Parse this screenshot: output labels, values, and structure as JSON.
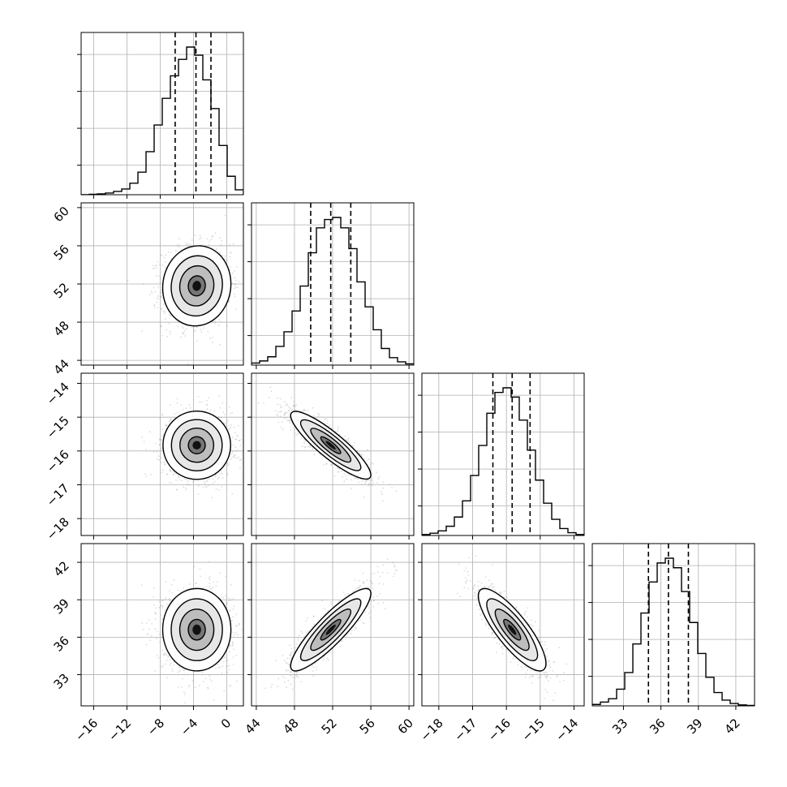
{
  "chart_data": {
    "type": "corner",
    "grid": true,
    "params": [
      {
        "key": "p0",
        "range": [
          -17.5,
          2.0
        ],
        "mean": -3.6,
        "sigma": 2.05,
        "ticks": [
          -16,
          -12,
          -8,
          -4,
          0
        ],
        "tick_labels": [
          "−16",
          "−12",
          "−8",
          "−4",
          "0"
        ]
      },
      {
        "key": "p1",
        "range": [
          43.5,
          60.5
        ],
        "mean": 51.8,
        "sigma": 2.1,
        "ticks": [
          44,
          48,
          52,
          56,
          60
        ],
        "tick_labels": [
          "44",
          "48",
          "52",
          "56",
          "60"
        ]
      },
      {
        "key": "p2",
        "range": [
          -18.5,
          -13.7
        ],
        "mean": -15.83,
        "sigma": 0.5,
        "ticks": [
          -18,
          -17,
          -16,
          -15,
          -14
        ],
        "tick_labels": [
          "−18",
          "−17",
          "−16",
          "−15",
          "−14"
        ]
      },
      {
        "key": "p3",
        "range": [
          30.5,
          43.5
        ],
        "mean": 36.6,
        "sigma": 1.65,
        "ticks": [
          33,
          36,
          39,
          42
        ],
        "tick_labels": [
          "33",
          "36",
          "39",
          "42"
        ]
      }
    ],
    "quantile_lines": [
      [
        -6.2,
        -3.7,
        -1.9
      ],
      [
        49.7,
        51.8,
        53.9
      ],
      [
        -16.4,
        -15.83,
        -15.3
      ],
      [
        35.0,
        36.6,
        38.2
      ]
    ],
    "histograms": [
      {
        "edges": [
          -17.5,
          -16.525,
          -15.55,
          -14.575,
          -13.6,
          -12.625,
          -11.65,
          -10.675,
          -9.7,
          -8.725,
          -7.75,
          -6.775,
          -5.8,
          -4.825,
          -3.85,
          -2.875,
          -1.9,
          -0.925,
          0.05,
          1.025,
          2.0
        ],
        "counts": [
          0,
          1,
          2,
          4,
          8,
          14,
          28,
          55,
          105,
          170,
          235,
          290,
          330,
          360,
          340,
          280,
          210,
          120,
          45,
          12
        ]
      },
      {
        "edges": [
          43.5,
          44.35,
          45.2,
          46.05,
          46.9,
          47.75,
          48.6,
          49.45,
          50.3,
          51.15,
          52.0,
          52.85,
          53.7,
          54.55,
          55.4,
          56.25,
          57.1,
          57.95,
          58.8,
          59.65,
          60.5
        ],
        "counts": [
          5,
          10,
          20,
          45,
          80,
          130,
          190,
          270,
          330,
          350,
          355,
          330,
          280,
          200,
          140,
          85,
          40,
          18,
          8,
          3
        ]
      },
      {
        "edges": [
          -18.5,
          -18.26,
          -18.02,
          -17.78,
          -17.54,
          -17.3,
          -17.06,
          -16.82,
          -16.58,
          -16.34,
          -16.1,
          -15.86,
          -15.62,
          -15.38,
          -15.14,
          -14.9,
          -14.66,
          -14.42,
          -14.18,
          -13.94,
          -13.7
        ],
        "counts": [
          2,
          5,
          10,
          20,
          40,
          75,
          130,
          195,
          265,
          310,
          320,
          300,
          250,
          185,
          120,
          70,
          35,
          15,
          6,
          2
        ]
      },
      {
        "edges": [
          30.5,
          31.15,
          31.8,
          32.45,
          33.1,
          33.75,
          34.4,
          35.05,
          35.7,
          36.35,
          37.0,
          37.65,
          38.3,
          38.95,
          39.6,
          40.25,
          40.9,
          41.55,
          42.2,
          42.85,
          43.5
        ],
        "counts": [
          3,
          8,
          15,
          35,
          70,
          130,
          195,
          260,
          300,
          310,
          290,
          240,
          175,
          110,
          60,
          28,
          12,
          5,
          2,
          1
        ]
      }
    ],
    "correlations": [
      {
        "pair": [
          0,
          1
        ],
        "rho": 0.05
      },
      {
        "pair": [
          0,
          2
        ],
        "rho": 0.0
      },
      {
        "pair": [
          0,
          3
        ],
        "rho": 0.0
      },
      {
        "pair": [
          1,
          2
        ],
        "rho": -0.88
      },
      {
        "pair": [
          1,
          3
        ],
        "rho": 0.88
      },
      {
        "pair": [
          2,
          3
        ],
        "rho": -0.82
      }
    ],
    "contour_sigma_levels": [
      0.5,
      1.0,
      1.5,
      2.0
    ],
    "scatter_color": "#9a9a9a",
    "line_color": "#000000"
  }
}
